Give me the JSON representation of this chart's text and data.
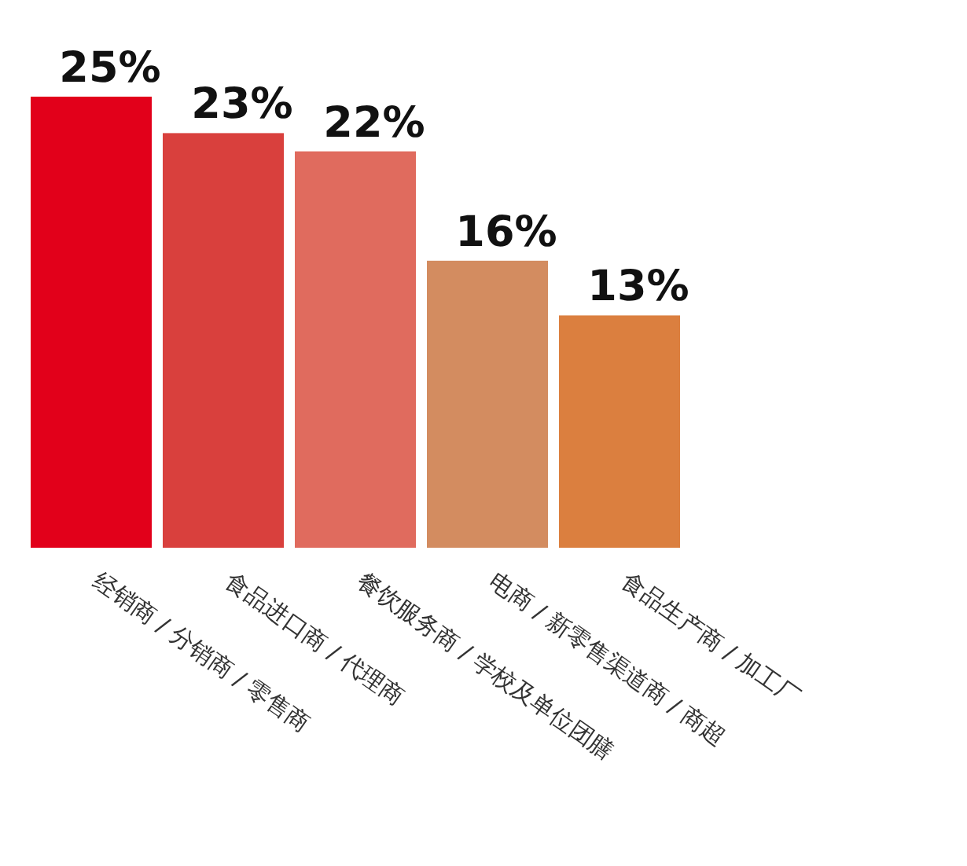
{
  "chart_data": {
    "type": "bar",
    "categories": [
      "经销商 / 分销商 / 零售商",
      "食品进口商 / 代理商",
      "餐饮服务商 / 学校及单位团膳",
      "电商 / 新零售渠道商 / 商超",
      "食品生产商 / 加工厂"
    ],
    "values": [
      25,
      23,
      22,
      16,
      13
    ],
    "colors": [
      "#e2001a",
      "#d9403d",
      "#e06b5e",
      "#d38c60",
      "#db7f3f"
    ],
    "value_labels": [
      "25%",
      "23%",
      "22%",
      "16%",
      "13%"
    ]
  }
}
